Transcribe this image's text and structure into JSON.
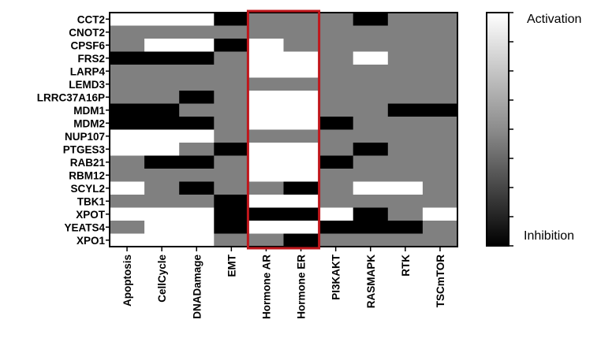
{
  "chart_data": {
    "type": "heatmap",
    "rows": [
      "CCT2",
      "CNOT2",
      "CPSF6",
      "FRS2",
      "LARP4",
      "LEMD3",
      "LRRC37A16P",
      "MDM1",
      "MDM2",
      "NUP107",
      "PTGES3",
      "RAB21",
      "RBM12",
      "SCYL2",
      "TBK1",
      "XPOT",
      "YEATS4",
      "XPO1"
    ],
    "columns": [
      "Apoptosis",
      "CellCycle",
      "DNADamage",
      "EMT",
      "Hormone AR",
      "Hormone ER",
      "PI3KAKT",
      "RASMAPK",
      "RTK",
      "TSCmTOR"
    ],
    "value_scale": {
      "min": -1,
      "max": 1,
      "min_label": "Inhibition",
      "max_label": "Activation"
    },
    "values": [
      [
        1,
        1,
        1,
        -1,
        0,
        0,
        0,
        -1,
        0,
        0
      ],
      [
        0,
        0,
        0,
        0,
        0,
        0,
        0,
        0,
        0,
        0
      ],
      [
        0,
        1,
        1,
        -1,
        1,
        0,
        0,
        0,
        0,
        0
      ],
      [
        -1,
        -1,
        -1,
        0,
        1,
        1,
        0,
        1,
        0,
        0
      ],
      [
        0,
        0,
        0,
        0,
        1,
        1,
        0,
        0,
        0,
        0
      ],
      [
        0,
        0,
        0,
        0,
        0,
        0,
        0,
        0,
        0,
        0
      ],
      [
        0,
        0,
        -1,
        0,
        1,
        1,
        0,
        0,
        0,
        0
      ],
      [
        -1,
        -1,
        0,
        0,
        1,
        1,
        0,
        0,
        -1,
        -1
      ],
      [
        -1,
        -1,
        -1,
        0,
        1,
        1,
        -1,
        0,
        0,
        0
      ],
      [
        1,
        1,
        1,
        0,
        0,
        0,
        0,
        0,
        0,
        0
      ],
      [
        1,
        1,
        0,
        -1,
        1,
        1,
        0,
        -1,
        0,
        0
      ],
      [
        0,
        -1,
        -1,
        0,
        1,
        1,
        -1,
        0,
        0,
        0
      ],
      [
        0,
        0,
        0,
        0,
        1,
        1,
        0,
        0,
        0,
        0
      ],
      [
        1,
        0,
        -1,
        0,
        0,
        -1,
        0,
        1,
        1,
        0
      ],
      [
        0,
        0,
        0,
        -1,
        1,
        1,
        0,
        0,
        0,
        0
      ],
      [
        1,
        1,
        1,
        -1,
        -1,
        -1,
        1,
        -1,
        0,
        1
      ],
      [
        0,
        1,
        1,
        -1,
        1,
        1,
        -1,
        -1,
        -1,
        0
      ],
      [
        1,
        1,
        1,
        0,
        0,
        -1,
        0,
        0,
        0,
        0
      ]
    ],
    "highlighted_columns": [
      "Hormone AR",
      "Hormone ER"
    ],
    "colors": {
      "activation": "#ffffff",
      "neutral": "#8c8c8c",
      "inhibition": "#000000",
      "highlight": "#c0161b"
    },
    "legend_position": "right"
  }
}
